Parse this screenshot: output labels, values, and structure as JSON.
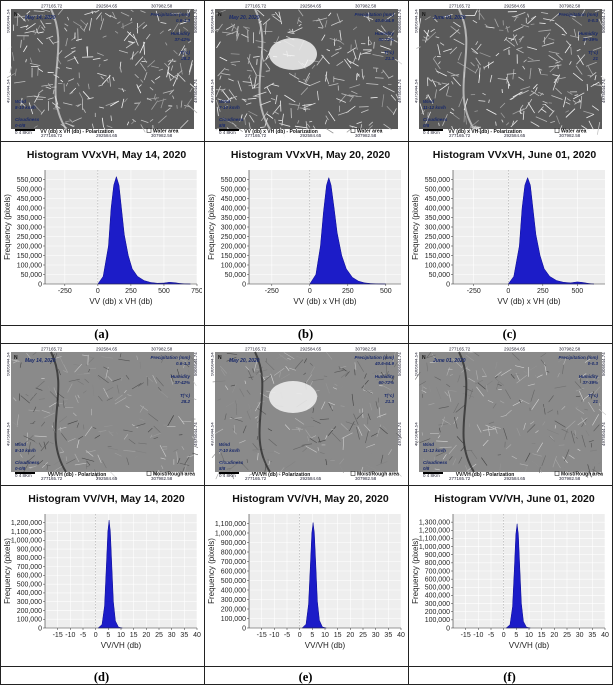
{
  "colors": {
    "fill": "#1c1cc8",
    "plot_bg": "#eeeeee",
    "grid": "#ffffff"
  },
  "maps": [
    {
      "date": "May 14, 2020",
      "pol": "VV (db) x VH (db) - Polarization",
      "legend": "Water area",
      "top_x": [
        "277165.72",
        "292584.65",
        "307982.58"
      ],
      "bot_x": [
        "277165.72",
        "292584.65",
        "307982.58"
      ],
      "left_y": [
        "5005044.54",
        "4975044.54"
      ],
      "right_y": [
        "5005044.74",
        "4975044.74"
      ],
      "precip_title": "Precipitation (mm)",
      "precip": "0.6-1.3",
      "humid_title": "Humidity",
      "humid": "37-42%",
      "temp_title": "T(°c)",
      "temp": "28.2",
      "wind_title": "Wind",
      "wind": "8-10 km/h",
      "cloud_title": "Cloudiness",
      "cloud": "0-0/8",
      "scale": "0 4 8Km",
      "north": "N",
      "bright": 0
    },
    {
      "date": "May 20, 2020",
      "pol": "VV (db) x VH (db) - Polarization",
      "legend": "Water area",
      "top_x": [
        "277165.72",
        "292584.65",
        "307982.58"
      ],
      "bot_x": [
        "277165.72",
        "292584.65",
        "307982.58"
      ],
      "left_y": [
        "5005044.54",
        "4975044.54"
      ],
      "right_y": [
        "5005044.74",
        "4975044.74"
      ],
      "precip_title": "Precipitation (mm)",
      "precip": "40.6-64.9",
      "humid_title": "Humidity",
      "humid": "60-72%",
      "temp_title": "T(°c)",
      "temp": "21.3",
      "wind_title": "Wind",
      "wind": "7-10 km/h",
      "cloud_title": "Cloudiness",
      "cloud": "8/8",
      "scale": "0 4 8Km",
      "north": "N",
      "bright": 1
    },
    {
      "date": "June 01, 2020",
      "pol": "VV (db) x VH (db) - Polarization",
      "legend": "Water area",
      "top_x": [
        "277165.72",
        "292584.65",
        "307982.58"
      ],
      "bot_x": [
        "277165.72",
        "292584.65",
        "307982.58"
      ],
      "left_y": [
        "5005044.54",
        "4975044.54"
      ],
      "right_y": [
        "5005044.74",
        "4975044.74"
      ],
      "precip_title": "Precipitation (mm)",
      "precip": "0-0.3",
      "humid_title": "Humidity",
      "humid": "37-39%",
      "temp_title": "T(°c)",
      "temp": "21",
      "wind_title": "Wind",
      "wind": "11-12 km/h",
      "cloud_title": "Cloudiness",
      "cloud": "0/8",
      "scale": "0 4 8Km",
      "north": "N",
      "bright": 0
    },
    {
      "date": "May 14, 2020",
      "pol": "VV/VH (db) - Polarization",
      "legend": "Moist/Rough area",
      "top_x": [
        "277165.72",
        "292584.65",
        "307982.58"
      ],
      "bot_x": [
        "277165.72",
        "292584.65",
        "307982.58"
      ],
      "left_y": [
        "5005044.54",
        "4975044.54"
      ],
      "right_y": [
        "5005044.74",
        "4975044.74"
      ],
      "precip_title": "Precipitation (mm)",
      "precip": "0.6-1.3",
      "humid_title": "Humidity",
      "humid": "37-42%",
      "temp_title": "T(°c)",
      "temp": "28.2",
      "wind_title": "Wind",
      "wind": "8-10 km/h",
      "cloud_title": "Cloudiness",
      "cloud": "0-0/8",
      "scale": "0 4 8Km",
      "north": "N",
      "bright": 0
    },
    {
      "date": "May 20, 2020",
      "pol": "VV/VH (db) - Polarization",
      "legend": "Moist/Rough area",
      "top_x": [
        "277165.72",
        "292584.65",
        "307982.58"
      ],
      "bot_x": [
        "277165.72",
        "292584.65",
        "307982.58"
      ],
      "left_y": [
        "5005044.54",
        "4975044.54"
      ],
      "right_y": [
        "5005044.74",
        "4975044.74"
      ],
      "precip_title": "Precipitation (mm)",
      "precip": "40.6-64.9",
      "humid_title": "Humidity",
      "humid": "60-72%",
      "temp_title": "T(°c)",
      "temp": "21.3",
      "wind_title": "Wind",
      "wind": "7-10 km/h",
      "cloud_title": "Cloudiness",
      "cloud": "8/8",
      "scale": "0 4 8Km",
      "north": "N",
      "bright": 1
    },
    {
      "date": "June 01, 2020",
      "pol": "VV/VH (db) - Polarization",
      "legend": "Moist/Rough area",
      "top_x": [
        "277165.72",
        "292584.65",
        "307982.58"
      ],
      "bot_x": [
        "277165.72",
        "292584.65",
        "307982.58"
      ],
      "left_y": [
        "5005044.54",
        "4975044.54"
      ],
      "right_y": [
        "5005044.74",
        "4975044.74"
      ],
      "precip_title": "Precipitation (mm)",
      "precip": "0-0.3",
      "humid_title": "Humidity",
      "humid": "37-39%",
      "temp_title": "T(°c)",
      "temp": "21",
      "wind_title": "Wind",
      "wind": "11-12 km/h",
      "cloud_title": "Cloudiness",
      "cloud": "0/8",
      "scale": "0 4 8Km",
      "north": "N",
      "bright": 0
    }
  ],
  "panel_labels": [
    "(a)",
    "(b)",
    "(c)",
    "(d)",
    "(e)",
    "(f)"
  ],
  "chart_data": [
    {
      "type": "area",
      "title": "Histogram VVxVH, May 14, 2020",
      "xlabel": "VV (db) x VH (db)",
      "ylabel": "Frequency (pixels)",
      "xlim": [
        -400,
        750
      ],
      "ylim": [
        0,
        600000
      ],
      "xticks": [
        -250,
        0,
        250,
        500,
        750
      ],
      "xtick_labels": [
        "-250",
        "0",
        "250",
        "500",
        "750"
      ],
      "yticks": [
        0,
        50000,
        100000,
        150000,
        200000,
        250000,
        300000,
        350000,
        400000,
        450000,
        500000,
        550000
      ],
      "ytick_labels": [
        "0",
        "50,000",
        "100,000",
        "150,000",
        "200,000",
        "250,000",
        "300,000",
        "350,000",
        "400,000",
        "450,000",
        "500,000",
        "550,000"
      ],
      "x": [
        0,
        40,
        80,
        100,
        120,
        140,
        160,
        180,
        200,
        230,
        260,
        300,
        350,
        400,
        450,
        500,
        540,
        580,
        620,
        660,
        700
      ],
      "y": [
        0,
        40000,
        200000,
        400000,
        520000,
        565000,
        520000,
        390000,
        260000,
        150000,
        80000,
        40000,
        18000,
        8000,
        4000,
        5000,
        9000,
        7000,
        3000,
        1000,
        0
      ],
      "grid": true
    },
    {
      "type": "area",
      "title": "Histogram VVxVH, May 20, 2020",
      "xlabel": "VV (db) x VH (db)",
      "ylabel": "Frequency (pixels)",
      "xlim": [
        -400,
        600
      ],
      "ylim": [
        0,
        600000
      ],
      "xticks": [
        -250,
        0,
        250,
        500
      ],
      "xtick_labels": [
        "-250",
        "0",
        "250",
        "500"
      ],
      "yticks": [
        0,
        50000,
        100000,
        150000,
        200000,
        250000,
        300000,
        350000,
        400000,
        450000,
        500000,
        550000
      ],
      "ytick_labels": [
        "0",
        "50,000",
        "100,000",
        "150,000",
        "200,000",
        "250,000",
        "300,000",
        "350,000",
        "400,000",
        "450,000",
        "500,000",
        "550,000"
      ],
      "x": [
        0,
        40,
        70,
        90,
        110,
        125,
        140,
        160,
        180,
        210,
        240,
        280,
        320,
        360,
        400,
        450,
        500
      ],
      "y": [
        0,
        50000,
        200000,
        380000,
        520000,
        560000,
        520000,
        400000,
        270000,
        150000,
        80000,
        35000,
        15000,
        6000,
        2500,
        800,
        0
      ],
      "grid": true
    },
    {
      "type": "area",
      "title": "Histogram VVxVH, June 01, 2020",
      "xlabel": "VV (db) x VH (db)",
      "ylabel": "Frequency (pixels)",
      "xlim": [
        -400,
        700
      ],
      "ylim": [
        0,
        600000
      ],
      "xticks": [
        -250,
        0,
        250,
        500
      ],
      "xtick_labels": [
        "-250",
        "0",
        "250",
        "500"
      ],
      "yticks": [
        0,
        50000,
        100000,
        150000,
        200000,
        250000,
        300000,
        350000,
        400000,
        450000,
        500000,
        550000
      ],
      "ytick_labels": [
        "0",
        "50,000",
        "100,000",
        "150,000",
        "200,000",
        "250,000",
        "300,000",
        "350,000",
        "400,000",
        "450,000",
        "500,000",
        "550,000"
      ],
      "x": [
        0,
        40,
        80,
        100,
        120,
        140,
        160,
        180,
        200,
        230,
        260,
        300,
        350,
        400,
        450,
        500,
        540,
        580,
        620
      ],
      "y": [
        0,
        40000,
        200000,
        400000,
        520000,
        560000,
        520000,
        390000,
        260000,
        150000,
        80000,
        40000,
        18000,
        9000,
        6000,
        11000,
        8000,
        3000,
        0
      ],
      "grid": true
    },
    {
      "type": "area",
      "title": "Histogram VV/VH, May 14, 2020",
      "xlabel": "VV/VH (db)",
      "ylabel": "Frequency (pixels)",
      "xlim": [
        -20,
        40
      ],
      "ylim": [
        0,
        1300000
      ],
      "xticks": [
        -15,
        -10,
        -5,
        0,
        5,
        10,
        15,
        20,
        25,
        30,
        35,
        40
      ],
      "xtick_labels": [
        "-15",
        "-10",
        "-5",
        "0",
        "5",
        "10",
        "15",
        "20",
        "25",
        "30",
        "35",
        "40"
      ],
      "yticks": [
        0,
        100000,
        200000,
        300000,
        400000,
        500000,
        600000,
        700000,
        800000,
        900000,
        1000000,
        1100000,
        1200000
      ],
      "ytick_labels": [
        "0",
        "100,000",
        "200,000",
        "300,000",
        "400,000",
        "500,000",
        "600,000",
        "700,000",
        "800,000",
        "900,000",
        "1,000,000",
        "1,100,000",
        "1,200,000"
      ],
      "x": [
        1,
        2.5,
        3.5,
        4.2,
        4.8,
        5.3,
        5.8,
        6.4,
        7.0,
        7.8,
        9,
        10.5
      ],
      "y": [
        0,
        40000,
        250000,
        700000,
        1100000,
        1230000,
        1100000,
        700000,
        300000,
        80000,
        10000,
        0
      ],
      "grid": true
    },
    {
      "type": "area",
      "title": "Histogram VV/VH, May 20, 2020",
      "xlabel": "VV/VH (db)",
      "ylabel": "Frequency (pixels)",
      "xlim": [
        -20,
        40
      ],
      "ylim": [
        0,
        1200000
      ],
      "xticks": [
        -15,
        -10,
        -5,
        0,
        5,
        10,
        15,
        20,
        25,
        30,
        35,
        40
      ],
      "xtick_labels": [
        "-15",
        "-10",
        "-5",
        "0",
        "5",
        "10",
        "15",
        "20",
        "25",
        "30",
        "35",
        "40"
      ],
      "yticks": [
        0,
        100000,
        200000,
        300000,
        400000,
        500000,
        600000,
        700000,
        800000,
        900000,
        1000000,
        1100000
      ],
      "ytick_labels": [
        "0",
        "100,000",
        "200,000",
        "300,000",
        "400,000",
        "500,000",
        "600,000",
        "700,000",
        "800,000",
        "900,000",
        "1,000,000",
        "1,100,000"
      ],
      "x": [
        1,
        2.5,
        3.5,
        4.2,
        4.8,
        5.3,
        5.8,
        6.4,
        7.0,
        7.8,
        9,
        10.5
      ],
      "y": [
        0,
        40000,
        250000,
        650000,
        1000000,
        1110000,
        1000000,
        650000,
        280000,
        80000,
        10000,
        0
      ],
      "grid": true
    },
    {
      "type": "area",
      "title": "Histogram VV/VH, June 01, 2020",
      "xlabel": "VV/VH (db)",
      "ylabel": "Frequency (pixels)",
      "xlim": [
        -20,
        40
      ],
      "ylim": [
        0,
        1400000
      ],
      "xticks": [
        -15,
        -10,
        -5,
        0,
        5,
        10,
        15,
        20,
        25,
        30,
        35,
        40
      ],
      "xtick_labels": [
        "-15",
        "-10",
        "-5",
        "0",
        "5",
        "10",
        "15",
        "20",
        "25",
        "30",
        "35",
        "40"
      ],
      "yticks": [
        0,
        100000,
        200000,
        300000,
        400000,
        500000,
        600000,
        700000,
        800000,
        900000,
        1000000,
        1100000,
        1200000,
        1300000
      ],
      "ytick_labels": [
        "0",
        "100,000",
        "200,000",
        "300,000",
        "400,000",
        "500,000",
        "600,000",
        "700,000",
        "800,000",
        "900,000",
        "1,000,000",
        "1,100,000",
        "1,200,000",
        "1,300,000"
      ],
      "x": [
        1,
        2.5,
        3.5,
        4.2,
        4.8,
        5.3,
        5.8,
        6.4,
        7.0,
        7.8,
        9,
        10.5
      ],
      "y": [
        0,
        40000,
        260000,
        720000,
        1150000,
        1280000,
        1150000,
        720000,
        300000,
        80000,
        10000,
        0
      ],
      "grid": true
    }
  ]
}
